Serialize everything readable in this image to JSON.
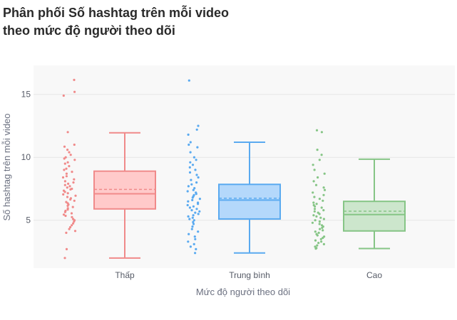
{
  "chart_data": {
    "type": "box",
    "title_lines": [
      "Phân phối Số hashtag trên mỗi video",
      "theo mức độ người theo dõi"
    ],
    "xlabel": "Mức độ người theo dõi",
    "ylabel": "Số hashtag trên mỗi video",
    "ylim": [
      1.2,
      17.3
    ],
    "yticks": [
      5,
      10,
      15
    ],
    "grid": true,
    "series": [
      {
        "name": "Thấp",
        "color": "#f08a8a",
        "fill": "#ffcaca",
        "stats": {
          "min": 2.0,
          "q1": 5.9,
          "median": 7.1,
          "mean": 7.45,
          "q3": 8.9,
          "max": 11.95
        },
        "points": [
          16.15,
          15.2,
          14.9,
          12.0,
          11.0,
          10.85,
          10.6,
          10.4,
          10.2,
          10.0,
          9.9,
          9.8,
          9.6,
          9.5,
          9.3,
          9.1,
          9.0,
          8.85,
          8.7,
          8.5,
          8.4,
          8.25,
          8.1,
          8.0,
          7.9,
          7.8,
          7.7,
          7.6,
          7.5,
          7.45,
          7.35,
          7.25,
          7.15,
          7.05,
          6.95,
          6.85,
          6.75,
          6.65,
          6.55,
          6.45,
          6.35,
          6.25,
          6.15,
          6.05,
          5.95,
          5.85,
          5.75,
          5.65,
          5.55,
          5.45,
          5.35,
          5.25,
          5.1,
          5.0,
          4.9,
          4.75,
          4.6,
          4.45,
          4.3,
          4.15,
          4.0,
          2.7,
          2.0
        ]
      },
      {
        "name": "Trung bình",
        "color": "#5aaaf0",
        "fill": "#b4d8fb",
        "stats": {
          "min": 2.4,
          "q1": 5.1,
          "median": 6.6,
          "mean": 6.75,
          "q3": 7.85,
          "max": 11.2
        },
        "points": [
          16.1,
          12.5,
          12.2,
          11.8,
          11.2,
          11.0,
          10.8,
          10.4,
          10.0,
          9.8,
          9.6,
          9.4,
          9.2,
          9.0,
          8.8,
          8.6,
          8.4,
          8.2,
          8.0,
          7.85,
          7.7,
          7.55,
          7.4,
          7.3,
          7.2,
          7.1,
          7.0,
          6.9,
          6.8,
          6.7,
          6.6,
          6.5,
          6.4,
          6.3,
          6.2,
          6.1,
          6.0,
          5.9,
          5.8,
          5.7,
          5.6,
          5.5,
          5.4,
          5.3,
          5.2,
          5.1,
          5.0,
          4.85,
          4.7,
          4.5,
          4.3,
          4.1,
          3.9,
          3.7,
          3.5,
          3.3,
          3.1,
          2.9,
          2.7,
          2.4
        ]
      },
      {
        "name": "Cao",
        "color": "#86c586",
        "fill": "#cce6cc",
        "stats": {
          "min": 2.75,
          "q1": 4.15,
          "median": 5.45,
          "mean": 5.72,
          "q3": 6.5,
          "max": 9.85
        },
        "points": [
          12.15,
          12.0,
          10.6,
          10.2,
          9.8,
          9.4,
          9.0,
          8.7,
          8.4,
          8.1,
          7.8,
          7.6,
          7.4,
          7.2,
          7.0,
          6.85,
          6.7,
          6.55,
          6.4,
          6.3,
          6.2,
          6.1,
          6.0,
          5.9,
          5.8,
          5.7,
          5.6,
          5.5,
          5.4,
          5.3,
          5.2,
          5.1,
          5.0,
          4.9,
          4.8,
          4.7,
          4.6,
          4.5,
          4.4,
          4.3,
          4.2,
          4.1,
          4.0,
          3.9,
          3.8,
          3.7,
          3.6,
          3.5,
          3.4,
          3.3,
          3.2,
          3.1,
          3.0,
          2.9,
          2.8,
          2.75
        ]
      }
    ]
  }
}
